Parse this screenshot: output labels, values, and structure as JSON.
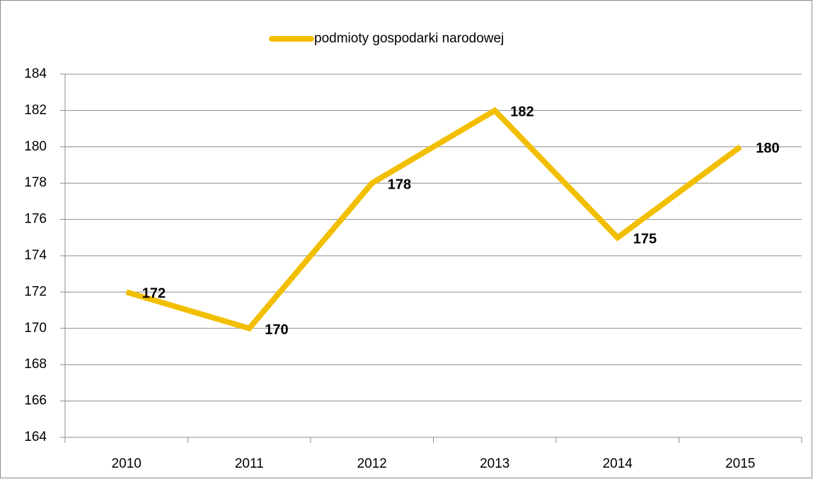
{
  "chart_data": {
    "type": "line",
    "categories": [
      "2010",
      "2011",
      "2012",
      "2013",
      "2014",
      "2015"
    ],
    "series": [
      {
        "name": "podmioty gospodarki narodowej",
        "color": "#f2bf00",
        "values": [
          172,
          170,
          178,
          182,
          175,
          180
        ]
      }
    ],
    "ylim": [
      164,
      184
    ],
    "yticks": [
      164,
      166,
      168,
      170,
      172,
      174,
      176,
      178,
      180,
      182,
      184
    ],
    "grid": true,
    "legend": "top"
  }
}
